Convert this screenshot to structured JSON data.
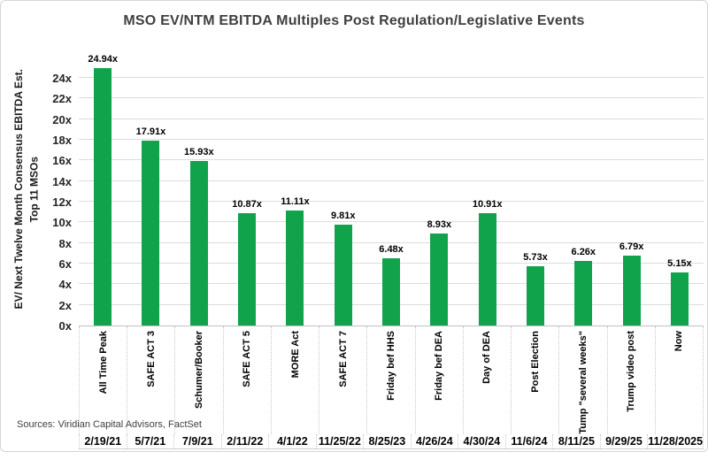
{
  "title": "MSO EV/NTM EBITDA Multiples Post Regulation/Legislative Events",
  "source_note": "Sources: Viridian Capital Advisors, FactSet",
  "colors": {
    "bar": "#11A34B",
    "grid": "#DCDCDC",
    "axis": "#C2C2C2",
    "border": "#D6D6D6",
    "title_text": "#3F3F3F",
    "tick_text": "#262626",
    "label_text": "#000000",
    "source_text": "#3F3F3F"
  },
  "chart_data": {
    "type": "bar",
    "title": "MSO EV/NTM EBITDA Multiples Post Regulation/Legislative Events",
    "ylabel_lines": [
      "EV/ Next Twelve Month Consensus EBITDA Est.",
      "Top 11 MSOs"
    ],
    "xlabel": "",
    "ylim": [
      0,
      24
    ],
    "y_tick_step": 2,
    "y_ticks": [
      "0x",
      "2x",
      "4x",
      "6x",
      "8x",
      "10x",
      "12x",
      "14x",
      "16x",
      "18x",
      "20x",
      "22x",
      "24x"
    ],
    "grid": true,
    "legend_position": "none",
    "value_label_suffix": "x",
    "categories": [
      "All Time Peak",
      "SAFE ACT 3",
      "Schumer/Booker",
      "SAFE ACT 5",
      "MORE Act",
      "SAFE ACT 7",
      "Friday bef HHS",
      "Friday bef DEA",
      "Day of DEA",
      "Post Election",
      "Tump \"several weeks\"",
      "Trump video post",
      "Now"
    ],
    "dates": [
      "2/19/21",
      "5/7/21",
      "7/9/21",
      "2/11/22",
      "4/1/22",
      "11/25/22",
      "8/25/23",
      "4/26/24",
      "4/30/24",
      "11/6/24",
      "8/11/25",
      "9/29/25",
      "11/28/2025"
    ],
    "values": [
      24.94,
      17.91,
      15.93,
      10.87,
      11.11,
      9.81,
      6.48,
      8.93,
      10.91,
      5.73,
      6.26,
      6.79,
      5.15
    ]
  }
}
